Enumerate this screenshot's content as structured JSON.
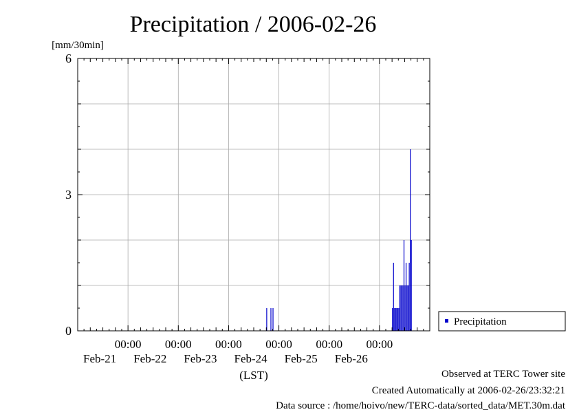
{
  "chart_data": {
    "type": "bar",
    "title": "Precipitation / 2006-02-26",
    "ylabel": "[mm/30min]",
    "xlabel": "(LST)",
    "ylim": [
      0,
      6
    ],
    "yticks": [
      "0",
      "3",
      "6"
    ],
    "xlim": [
      "2006-02-20 00:00",
      "2006-02-27 00:00"
    ],
    "xticks": [
      {
        "time": "00:00",
        "date": "Feb-21",
        "at": "2006-02-21 00:00"
      },
      {
        "time": "00:00",
        "date": "Feb-22",
        "at": "2006-02-22 00:00"
      },
      {
        "time": "00:00",
        "date": "Feb-23",
        "at": "2006-02-23 00:00"
      },
      {
        "time": "00:00",
        "date": "Feb-24",
        "at": "2006-02-24 00:00"
      },
      {
        "time": "00:00",
        "date": "Feb-25",
        "at": "2006-02-25 00:00"
      },
      {
        "time": "00:00",
        "date": "Feb-26",
        "at": "2006-02-26 00:00"
      }
    ],
    "grid": true,
    "legend_position": "right",
    "series": [
      {
        "name": "Precipitation",
        "color": "#0000cc",
        "points": [
          [
            "2006-02-23 18:30",
            0.5
          ],
          [
            "2006-02-23 20:30",
            0.5
          ],
          [
            "2006-02-23 21:30",
            0.5
          ],
          [
            "2006-02-26 06:30",
            0.5
          ],
          [
            "2006-02-26 07:00",
            1.5
          ],
          [
            "2006-02-26 07:30",
            0.5
          ],
          [
            "2006-02-26 08:00",
            0.5
          ],
          [
            "2006-02-26 08:30",
            0.5
          ],
          [
            "2006-02-26 09:00",
            0.5
          ],
          [
            "2006-02-26 09:30",
            0.5
          ],
          [
            "2006-02-26 10:00",
            1.0
          ],
          [
            "2006-02-26 10:30",
            1.0
          ],
          [
            "2006-02-26 11:00",
            1.0
          ],
          [
            "2006-02-26 11:30",
            1.0
          ],
          [
            "2006-02-26 12:00",
            2.0
          ],
          [
            "2006-02-26 12:30",
            1.0
          ],
          [
            "2006-02-26 13:00",
            1.5
          ],
          [
            "2006-02-26 13:30",
            1.0
          ],
          [
            "2006-02-26 14:00",
            1.0
          ],
          [
            "2006-02-26 14:30",
            1.5
          ],
          [
            "2006-02-26 15:00",
            4.0
          ],
          [
            "2006-02-26 15:30",
            2.0
          ]
        ]
      }
    ]
  },
  "footer": {
    "line1": "Observed at TERC Tower site",
    "line2": "Created Automatically at 2006-02-26/23:32:21",
    "line3": "Data source : /home/hoivo/new/TERC-data/sorted_data/MET.30m.dat"
  }
}
